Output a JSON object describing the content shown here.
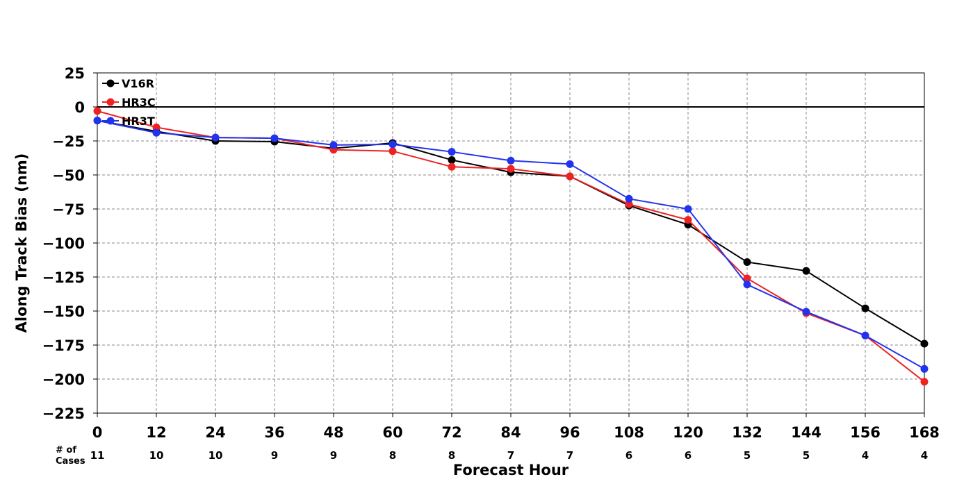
{
  "chart_data": {
    "type": "line",
    "xlabel": "Forecast Hour",
    "ylabel": "Along Track Bias (nm)",
    "x": [
      0,
      12,
      24,
      36,
      48,
      60,
      72,
      84,
      96,
      108,
      120,
      132,
      144,
      156,
      168
    ],
    "xlim": [
      0,
      168
    ],
    "ylim": [
      -225,
      25
    ],
    "yticks": [
      25,
      0,
      -25,
      -50,
      -75,
      -100,
      -125,
      -150,
      -175,
      -200,
      -225
    ],
    "grid": true,
    "legend_position": "top-left",
    "cases_label": "# of Cases",
    "cases_label_lines": [
      "# of",
      "Cases"
    ],
    "cases": [
      11,
      10,
      10,
      9,
      9,
      8,
      8,
      7,
      7,
      6,
      6,
      5,
      5,
      4,
      4
    ],
    "series": [
      {
        "name": "V16R",
        "color": "#000000",
        "values": [
          -10,
          -18,
          -25,
          -25.5,
          -30.5,
          -26.5,
          -39,
          -48,
          -51,
          -72.5,
          -86.5,
          -114,
          -120.5,
          -148,
          -174
        ]
      },
      {
        "name": "HR3C",
        "color": "#ee2222",
        "values": [
          -3,
          -15,
          -22.5,
          -23,
          -31.5,
          -32.5,
          -44,
          -45.5,
          -51,
          -71.5,
          -83,
          -126,
          -151.5,
          -168,
          -202
        ]
      },
      {
        "name": "HR3T",
        "color": "#2233ee",
        "values": [
          -10,
          -19,
          -22.5,
          -23,
          -28,
          -27.5,
          -33,
          -39.5,
          -42,
          -67.5,
          -75,
          -130.5,
          -150.5,
          -168,
          -192.5
        ]
      }
    ]
  }
}
